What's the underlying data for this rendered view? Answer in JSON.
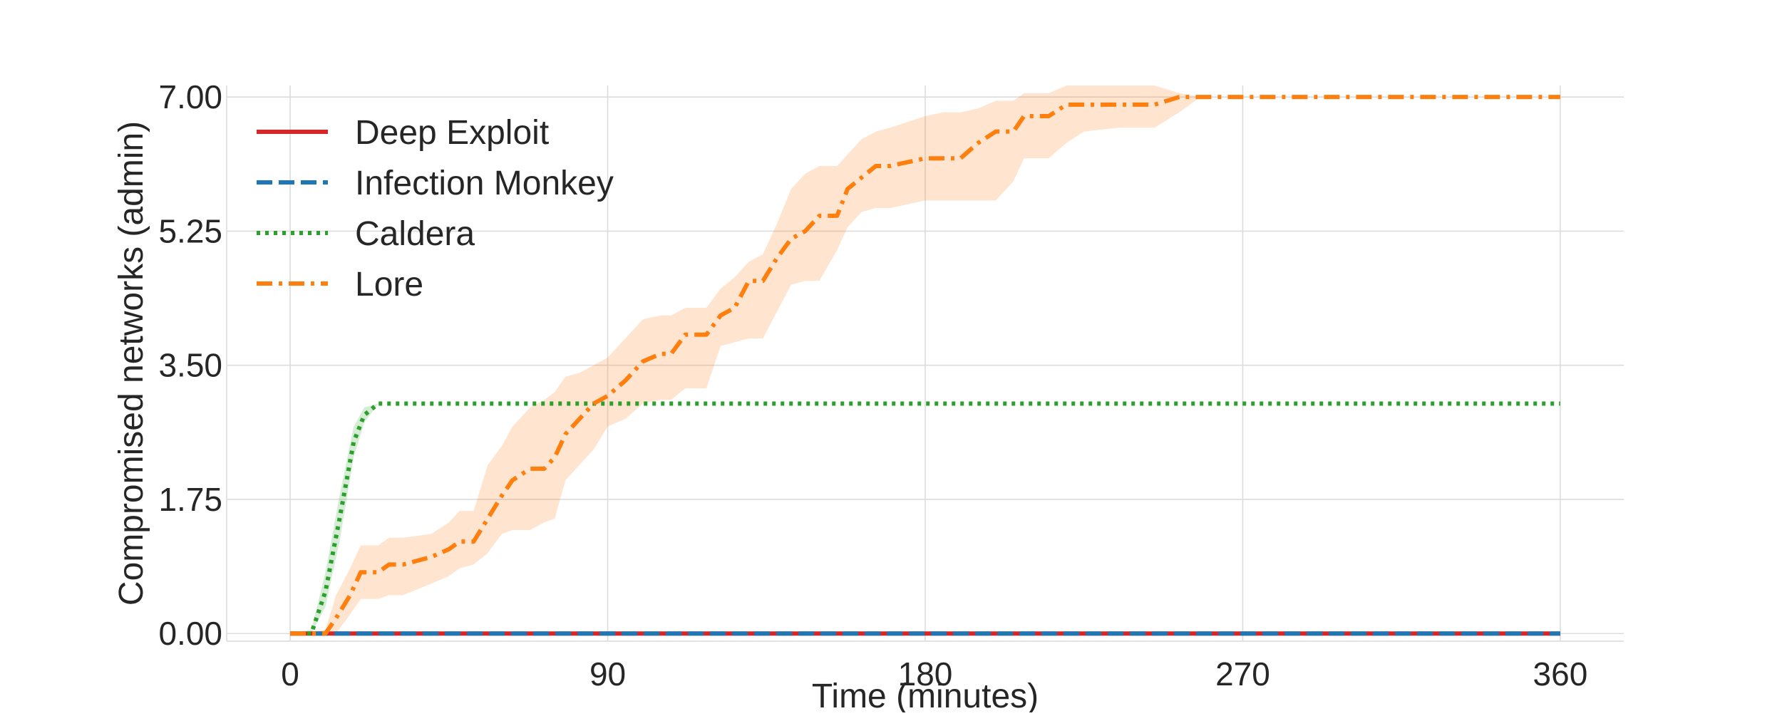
{
  "chart_data": {
    "type": "line",
    "title": "",
    "xlabel": "Time (minutes)",
    "ylabel": "Compromised networks (admin)",
    "xlim": [
      -18,
      378
    ],
    "ylim": [
      -0.1,
      7.15
    ],
    "xticks": [
      0,
      90,
      180,
      270,
      360
    ],
    "xtick_labels": [
      "0",
      "90",
      "180",
      "270",
      "360"
    ],
    "yticks": [
      0,
      1.75,
      3.5,
      5.25,
      7
    ],
    "ytick_labels": [
      "0.00",
      "1.75",
      "3.50",
      "5.25",
      "7.00"
    ],
    "grid": true,
    "legend": {
      "position": "top-left"
    },
    "series": [
      {
        "name": "Deep Exploit",
        "color": "#d62728",
        "linestyle": "solid",
        "x": [
          0,
          360
        ],
        "y": [
          0,
          0
        ],
        "band_lower": [
          0,
          0
        ],
        "band_upper": [
          0,
          0
        ]
      },
      {
        "name": "Infection Monkey",
        "color": "#1f77b4",
        "linestyle": "dashed",
        "x": [
          0,
          360
        ],
        "y": [
          0,
          0
        ],
        "band_lower": [
          0,
          0
        ],
        "band_upper": [
          0,
          0
        ]
      },
      {
        "name": "Caldera",
        "color": "#2ca02c",
        "linestyle": "dotted",
        "x": [
          0,
          6,
          10,
          14,
          18,
          21,
          25,
          360
        ],
        "y": [
          0,
          0,
          0.55,
          1.5,
          2.5,
          2.85,
          3.0,
          3.0
        ],
        "band_lower": [
          0,
          0,
          0.35,
          1.2,
          2.3,
          2.75,
          3.0,
          3.0
        ],
        "band_upper": [
          0,
          0.05,
          0.8,
          1.8,
          2.7,
          2.95,
          3.0,
          3.0
        ]
      },
      {
        "name": "Lore",
        "color": "#ff7f0e",
        "linestyle": "dashdot",
        "x": [
          0,
          10,
          13,
          17,
          20,
          22,
          25,
          28,
          32,
          40,
          45,
          48,
          52,
          56,
          60,
          63,
          68,
          72,
          75,
          78,
          82,
          86,
          90,
          95,
          100,
          105,
          108,
          112,
          118,
          122,
          126,
          130,
          134,
          138,
          142,
          146,
          150,
          155,
          158,
          162,
          166,
          170,
          180,
          185,
          190,
          195,
          200,
          205,
          208,
          215,
          220,
          225,
          235,
          240,
          245,
          252,
          258,
          270,
          300,
          330,
          360
        ],
        "y": [
          0,
          0,
          0.2,
          0.5,
          0.8,
          0.8,
          0.8,
          0.9,
          0.9,
          1.0,
          1.1,
          1.2,
          1.2,
          1.5,
          1.8,
          2.0,
          2.15,
          2.15,
          2.3,
          2.6,
          2.8,
          3.0,
          3.1,
          3.3,
          3.55,
          3.65,
          3.65,
          3.9,
          3.9,
          4.15,
          4.25,
          4.6,
          4.6,
          4.9,
          5.15,
          5.25,
          5.45,
          5.45,
          5.8,
          5.95,
          6.1,
          6.1,
          6.2,
          6.2,
          6.2,
          6.4,
          6.55,
          6.55,
          6.75,
          6.75,
          6.9,
          6.9,
          6.9,
          6.9,
          6.9,
          7.0,
          7.0,
          7.0,
          7.0,
          7.0,
          7.0
        ],
        "band_lower": [
          0,
          0,
          0,
          0.25,
          0.45,
          0.45,
          0.45,
          0.5,
          0.5,
          0.65,
          0.75,
          0.85,
          0.9,
          1.05,
          1.3,
          1.35,
          1.35,
          1.45,
          1.5,
          2.0,
          2.2,
          2.4,
          2.7,
          2.8,
          3.0,
          3.05,
          3.05,
          3.2,
          3.2,
          3.75,
          3.8,
          3.85,
          3.85,
          4.2,
          4.55,
          4.6,
          4.6,
          5.0,
          5.3,
          5.5,
          5.55,
          5.55,
          5.65,
          5.65,
          5.65,
          5.65,
          5.65,
          5.9,
          6.2,
          6.2,
          6.4,
          6.55,
          6.6,
          6.6,
          6.6,
          6.8,
          7.0,
          7.0,
          7.0,
          7.0,
          7.0
        ],
        "band_upper": [
          0,
          0.05,
          0.5,
          0.85,
          1.15,
          1.15,
          1.15,
          1.25,
          1.25,
          1.3,
          1.45,
          1.6,
          1.6,
          2.2,
          2.45,
          2.7,
          2.95,
          3.05,
          3.15,
          3.35,
          3.4,
          3.5,
          3.6,
          3.85,
          4.1,
          4.15,
          4.15,
          4.25,
          4.25,
          4.5,
          4.65,
          4.85,
          4.95,
          5.35,
          5.8,
          6.0,
          6.1,
          6.1,
          6.25,
          6.45,
          6.55,
          6.6,
          6.75,
          6.8,
          6.8,
          6.85,
          6.95,
          6.95,
          7.05,
          7.05,
          7.15,
          7.15,
          7.15,
          7.15,
          7.15,
          7.05,
          7.0,
          7.0,
          7.0,
          7.0,
          7.0
        ]
      }
    ]
  }
}
